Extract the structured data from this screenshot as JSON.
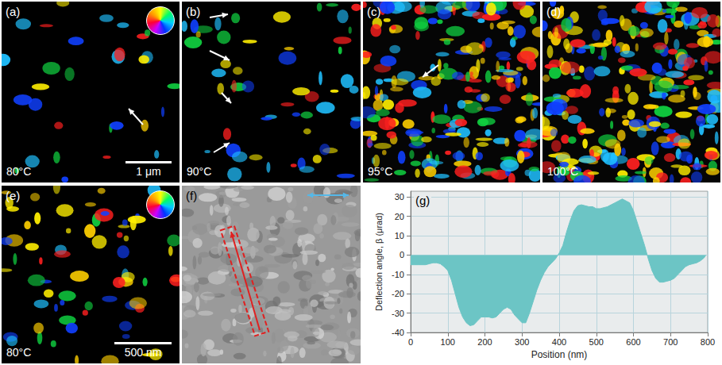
{
  "panels": [
    {
      "letter": "(a)",
      "label": "80°C",
      "scale_bar": "1 μm",
      "color_wheel": true
    },
    {
      "letter": "(b)",
      "label": "90°C"
    },
    {
      "letter": "(c)",
      "label": "95°C"
    },
    {
      "letter": "(d)",
      "label": "100°C"
    },
    {
      "letter": "(e)",
      "label": "80°C",
      "scale_bar": "500 nm",
      "color_wheel": true
    },
    {
      "letter": "(f)"
    },
    {
      "letter": "(g)"
    }
  ],
  "chart_data": {
    "type": "area",
    "x_label": "Position (nm)",
    "y_label": "Deflection angle, β (μrad)",
    "x": [
      0,
      10,
      20,
      30,
      40,
      50,
      60,
      70,
      80,
      90,
      100,
      110,
      120,
      130,
      140,
      150,
      160,
      170,
      180,
      190,
      200,
      210,
      220,
      230,
      240,
      250,
      260,
      270,
      280,
      290,
      300,
      310,
      320,
      330,
      340,
      350,
      360,
      370,
      380,
      390,
      400,
      410,
      420,
      430,
      440,
      450,
      460,
      470,
      480,
      490,
      500,
      510,
      520,
      530,
      540,
      550,
      560,
      570,
      580,
      590,
      600,
      610,
      620,
      630,
      640,
      650,
      660,
      670,
      680,
      690,
      700,
      710,
      720,
      730,
      740,
      750,
      760,
      770,
      780,
      790,
      795
    ],
    "values": [
      -5,
      -5,
      -5,
      -5,
      -5,
      -4.5,
      -4,
      -4,
      -4.5,
      -6,
      -8,
      -13,
      -20,
      -27,
      -32,
      -35,
      -36.5,
      -36,
      -34,
      -32,
      -32,
      -32,
      -32.5,
      -32,
      -30,
      -28,
      -27,
      -28,
      -31,
      -33,
      -35,
      -35,
      -30,
      -24,
      -18,
      -13,
      -9,
      -6,
      -4,
      -2,
      1,
      5,
      12,
      18,
      23,
      25.5,
      26,
      25.5,
      25,
      25,
      24,
      24,
      24.5,
      25,
      26,
      27,
      28,
      29,
      28,
      27,
      23,
      17,
      11,
      5,
      -2,
      -8,
      -12,
      -14,
      -14,
      -13.5,
      -13,
      -12,
      -10,
      -8,
      -6,
      -5,
      -4.5,
      -4,
      -3,
      -1.5,
      0
    ],
    "color": "#6cc5c5",
    "xlim": [
      0,
      800
    ],
    "xticks": [
      0,
      100,
      200,
      300,
      400,
      500,
      600,
      700,
      800
    ],
    "ylim": [
      -40,
      33
    ],
    "yticks": [
      -40,
      -30,
      -20,
      -10,
      0,
      10,
      20,
      30
    ],
    "grid": true
  }
}
